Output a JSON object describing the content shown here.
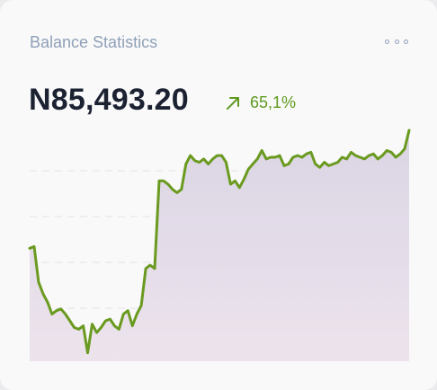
{
  "card": {
    "title": "Balance Statistics",
    "menu_icon": "more-horizontal-icon",
    "balance": "N85,493.20",
    "change_icon": "arrow-up-right-icon",
    "change_value": "65,1%",
    "colors": {
      "line": "#6a9a1f",
      "fill_top": "#d9d3e3",
      "fill_bottom": "#ece2ec",
      "positive": "#5f9a1e",
      "title": "#8fa0b8"
    }
  },
  "chart_data": {
    "type": "area",
    "grid": true,
    "legend": "none",
    "x": [
      0,
      1,
      2,
      3,
      4,
      5,
      6,
      7,
      8,
      9,
      10,
      11,
      12,
      13,
      14,
      15,
      16,
      17,
      18,
      19,
      20,
      21,
      22,
      23,
      24,
      25,
      26,
      27,
      28,
      29,
      30,
      31,
      32,
      33,
      34,
      35,
      36,
      37,
      38,
      39,
      40,
      41,
      42,
      43,
      44,
      45,
      46,
      47,
      48,
      49,
      50,
      51,
      52,
      53,
      54,
      55,
      56,
      57,
      58,
      59,
      60,
      61,
      62,
      63,
      64,
      65,
      66,
      67,
      68,
      69,
      70,
      71,
      72,
      73,
      74,
      75,
      76,
      77,
      78,
      79,
      80,
      81,
      82,
      83,
      84,
      85
    ],
    "values": [
      42,
      43,
      22,
      15,
      10,
      3,
      5,
      6,
      3,
      -1,
      -5,
      -6,
      -4,
      -20,
      -3,
      -8,
      -5,
      -1,
      0,
      -4,
      -6,
      3,
      5,
      -4,
      3,
      8,
      30,
      32,
      30,
      82,
      82,
      80,
      77,
      75,
      77,
      92,
      97,
      94,
      93,
      95,
      92,
      95,
      97,
      97,
      93,
      80,
      82,
      78,
      83,
      89,
      92,
      95,
      100,
      95,
      96,
      96,
      97,
      91,
      92,
      96,
      97,
      96,
      98,
      99,
      92,
      90,
      93,
      91,
      92,
      93,
      96,
      95,
      99,
      97,
      96,
      95,
      97,
      98,
      95,
      97,
      100,
      99,
      96,
      98,
      101,
      112
    ],
    "ylim": [
      -25,
      120
    ]
  }
}
